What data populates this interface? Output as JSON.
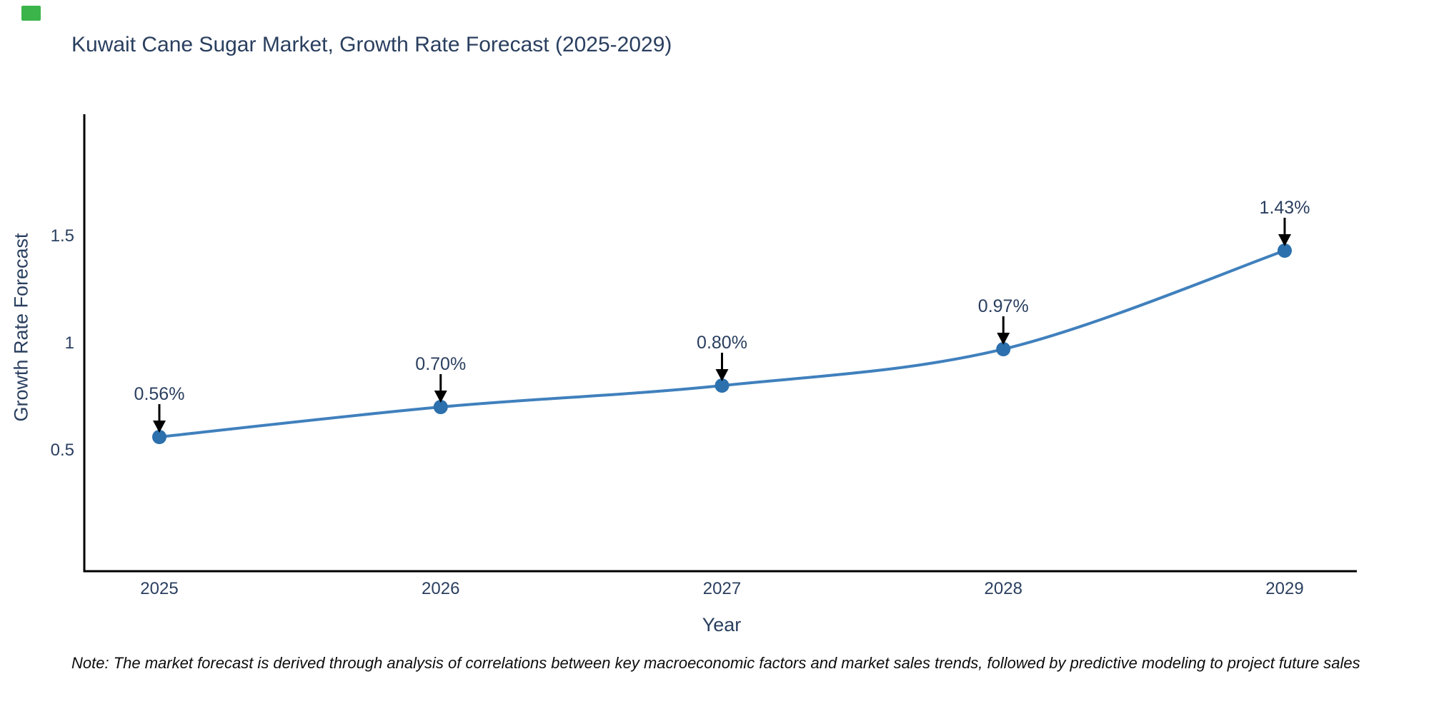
{
  "title": "Kuwait Cane Sugar Market, Growth Rate Forecast (2025-2029)",
  "note": "Note: The market forecast is derived through analysis of correlations between key macroeconomic factors and market sales trends, followed by predictive modeling to project future sales",
  "brand": {
    "color": "#3bb54a"
  },
  "chart_data": {
    "type": "line",
    "title": "Kuwait Cane Sugar Market, Growth Rate Forecast (2025-2029)",
    "xlabel": "Year",
    "ylabel": "Growth Rate Forecast",
    "categories": [
      "2025",
      "2026",
      "2027",
      "2028",
      "2029"
    ],
    "values": [
      0.56,
      0.7,
      0.8,
      0.97,
      1.43
    ],
    "point_labels": [
      "0.56%",
      "0.70%",
      "0.80%",
      "0.97%",
      "1.43%"
    ],
    "series": [
      {
        "name": "Growth Rate Forecast",
        "values": [
          0.56,
          0.7,
          0.8,
          0.97,
          1.43
        ]
      }
    ],
    "y_ticks": [
      0.5,
      1.0,
      1.5
    ],
    "y_tick_labels": [
      "0.5",
      "1",
      "1.5"
    ],
    "ylim": [
      -0.07,
      2.07
    ],
    "grid": false,
    "legend": false,
    "smooth": true,
    "line_color": "#4080bd",
    "marker_color": "#2c70ad",
    "axis_color": "#000000",
    "text_color": "#2a3f5f",
    "annotation_arrow_color": "#000000"
  }
}
